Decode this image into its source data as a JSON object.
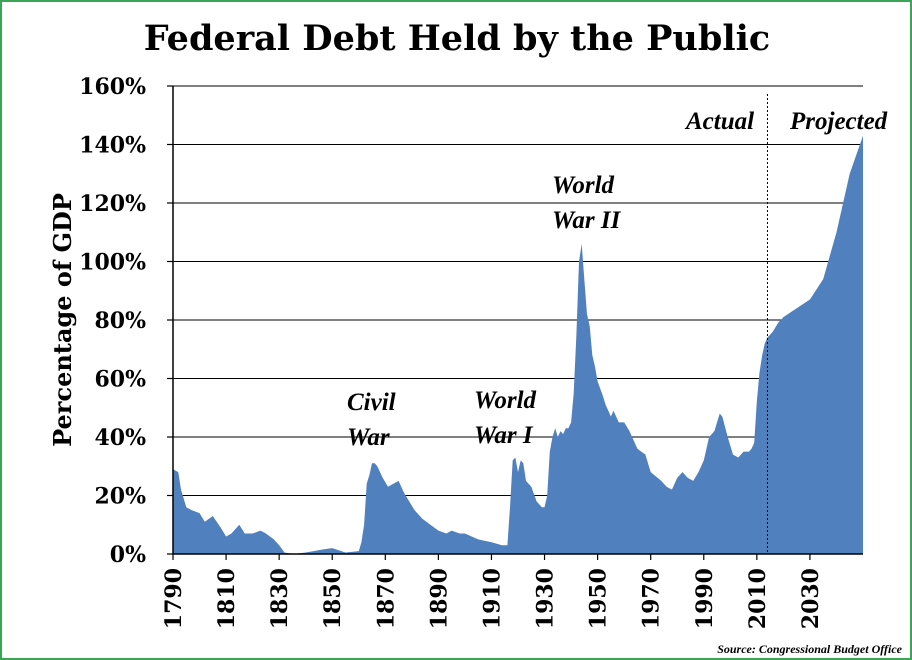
{
  "chart_data": {
    "type": "area",
    "title": "Federal Debt Held by the Public",
    "ylabel": "Percentage of GDP",
    "xlabel": "",
    "source": "Source: Congressional Budget Office",
    "xlim": [
      1790,
      2050
    ],
    "ylim": [
      0,
      160
    ],
    "grid": "horizontal",
    "color": "#5080be",
    "x_ticks": [
      "1790",
      "1810",
      "1830",
      "1850",
      "1870",
      "1890",
      "1910",
      "1930",
      "1950",
      "1970",
      "1990",
      "2010",
      "2030"
    ],
    "y_ticks": [
      "0%",
      "20%",
      "40%",
      "60%",
      "80%",
      "100%",
      "120%",
      "140%",
      "160%"
    ],
    "divider_year": 2014,
    "labels": {
      "actual": "Actual",
      "projected": "Projected",
      "civil_war": [
        "Civil",
        "War"
      ],
      "ww1": [
        "World",
        "War I"
      ],
      "ww2": [
        "World",
        "War II"
      ]
    },
    "x": [
      1790,
      1792,
      1793,
      1795,
      1797,
      1800,
      1802,
      1805,
      1808,
      1810,
      1812,
      1815,
      1817,
      1820,
      1823,
      1825,
      1828,
      1830,
      1832,
      1834,
      1836,
      1840,
      1843,
      1846,
      1850,
      1855,
      1860,
      1861,
      1862,
      1863,
      1864,
      1865,
      1866,
      1867,
      1869,
      1871,
      1873,
      1875,
      1877,
      1879,
      1881,
      1884,
      1887,
      1890,
      1893,
      1895,
      1898,
      1900,
      1905,
      1910,
      1914,
      1916,
      1917,
      1918,
      1919,
      1920,
      1921,
      1922,
      1923,
      1925,
      1927,
      1929,
      1930,
      1931,
      1932,
      1933,
      1934,
      1935,
      1936,
      1937,
      1938,
      1939,
      1940,
      1941,
      1942,
      1943,
      1944,
      1945,
      1946,
      1947,
      1948,
      1949,
      1950,
      1952,
      1953,
      1955,
      1956,
      1958,
      1960,
      1962,
      1965,
      1968,
      1970,
      1974,
      1976,
      1978,
      1980,
      1982,
      1984,
      1986,
      1988,
      1990,
      1992,
      1994,
      1996,
      1997,
      1999,
      2001,
      2003,
      2005,
      2007,
      2008,
      2009,
      2010,
      2011,
      2012,
      2013,
      2014,
      2016,
      2018,
      2020,
      2025,
      2030,
      2035,
      2040,
      2045,
      2050
    ],
    "y": [
      29,
      28,
      22,
      16,
      15,
      14,
      11,
      13,
      9,
      6,
      7,
      10,
      7,
      7,
      8,
      7,
      5,
      3,
      0.5,
      0.2,
      0.1,
      0.5,
      1,
      1.5,
      2,
      0.5,
      1,
      4,
      10,
      24,
      27,
      31,
      31,
      30,
      26,
      23,
      24,
      25,
      21,
      18,
      15,
      12,
      10,
      8,
      7,
      8,
      7,
      7,
      5,
      4,
      3,
      3,
      16,
      32,
      33,
      28,
      32,
      31,
      25,
      23,
      18,
      16,
      16,
      20,
      35,
      40,
      43,
      40,
      42,
      41,
      43,
      43,
      45,
      55,
      75,
      100,
      106,
      94,
      82,
      78,
      68,
      64,
      59,
      54,
      51,
      47,
      49,
      45,
      45,
      42,
      36,
      34,
      28,
      25,
      23,
      22,
      26,
      28,
      26,
      25,
      28,
      32,
      40,
      42,
      48,
      47,
      40,
      34,
      33,
      35,
      35,
      36,
      38,
      52,
      62,
      68,
      72,
      74,
      76,
      79,
      81,
      84,
      87,
      94,
      110,
      130,
      143
    ]
  }
}
